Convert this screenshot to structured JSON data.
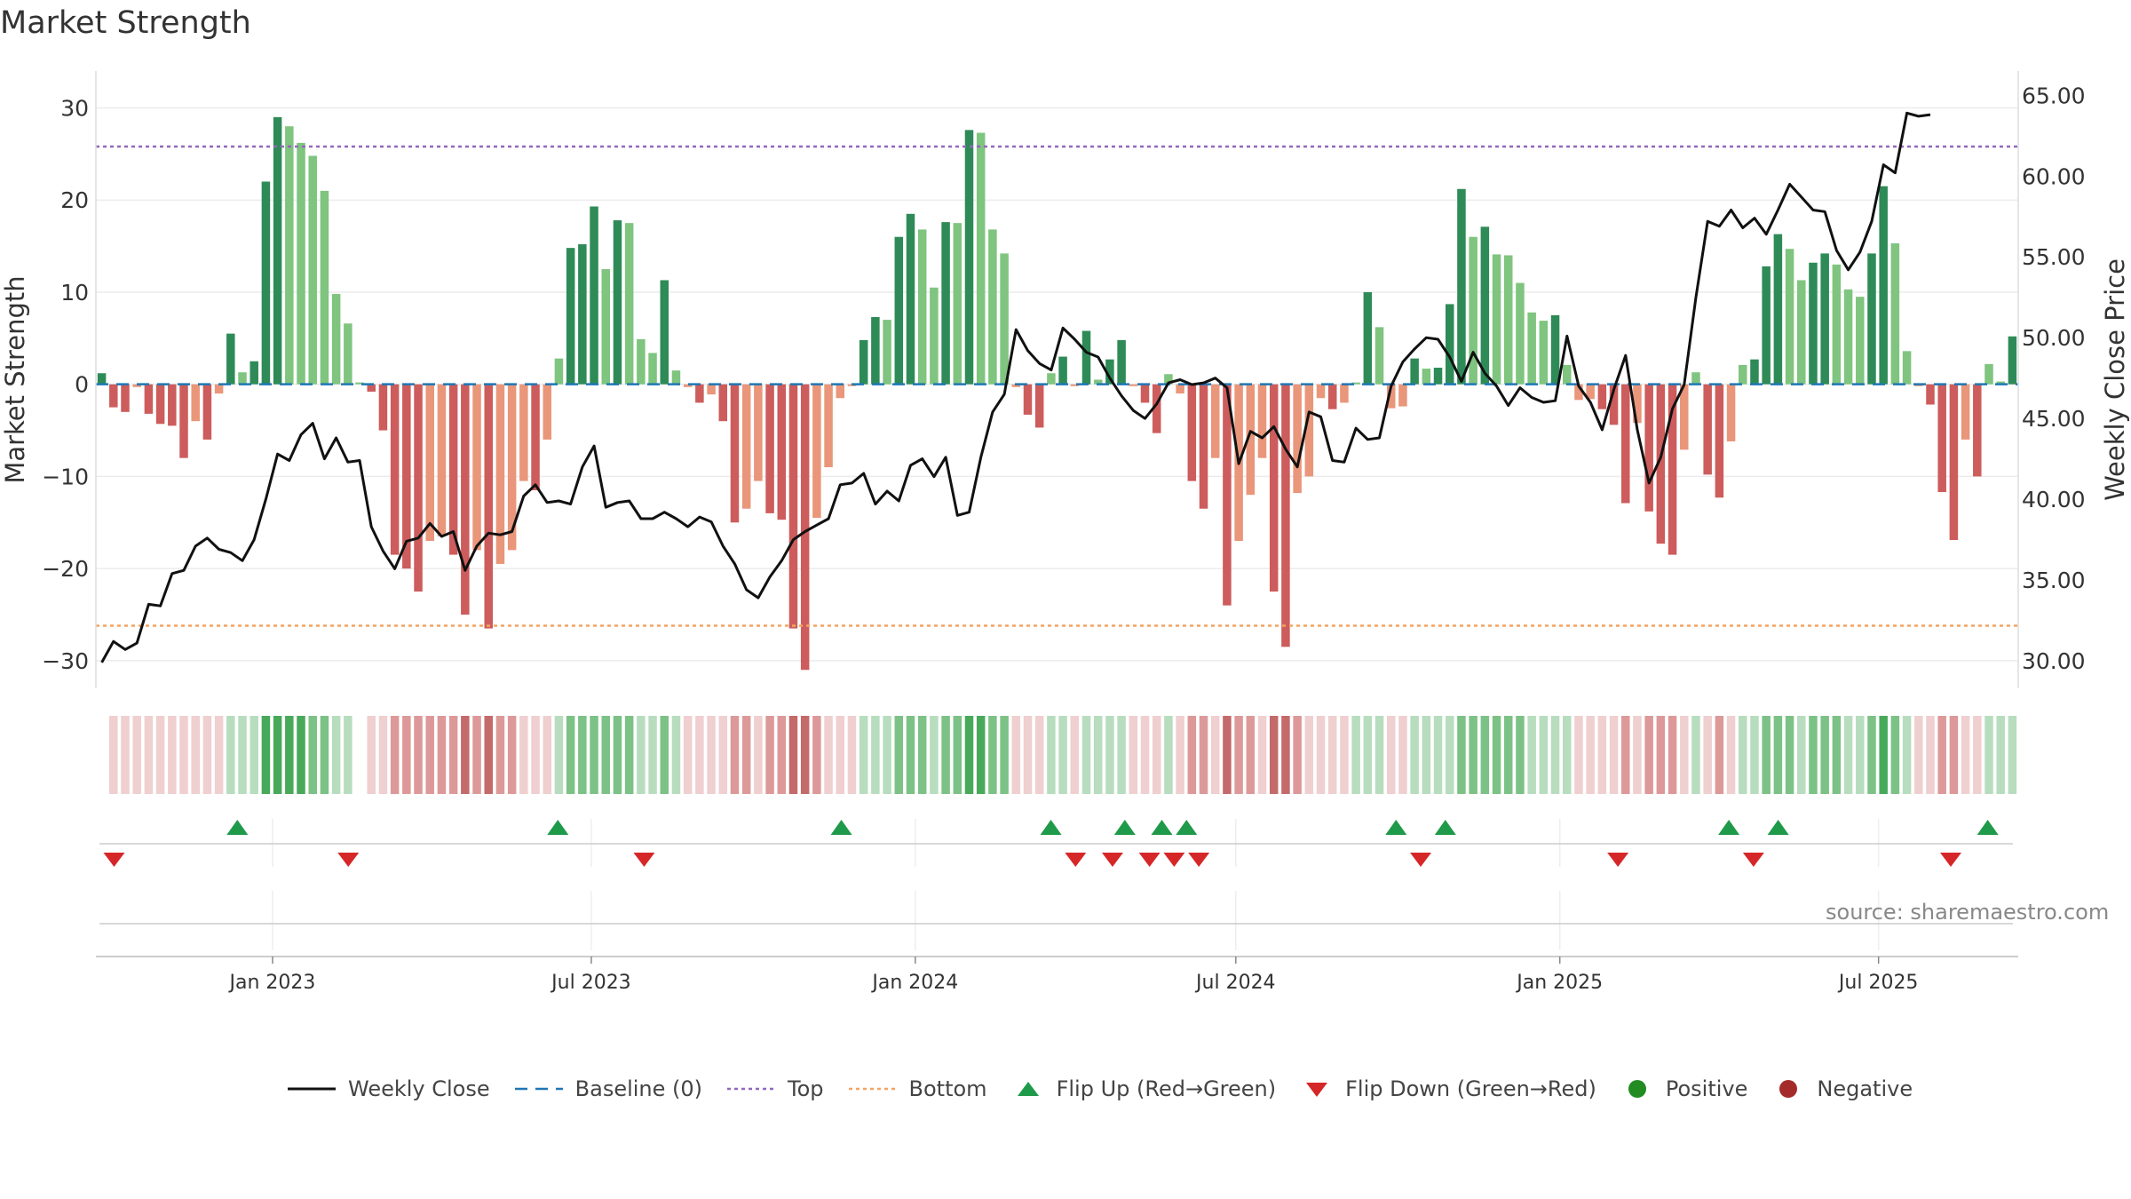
{
  "title": "Market Strength",
  "source": "source: sharemaestro.com",
  "colors": {
    "pos_strong": "#2e8b57",
    "pos_light": "#7fc47f",
    "neg_strong": "#cd5c5c",
    "neg_light": "#e9967a",
    "line": "#111111",
    "baseline": "#1f77b4",
    "top": "#9467bd",
    "bottom": "#f4a460",
    "flip_up": "#1f9a4a",
    "flip_down": "#d62728",
    "legend_positive": "#228b22",
    "legend_negative": "#a52a2a"
  },
  "legend": {
    "weekly_close": "Weekly Close",
    "baseline": "Baseline (0)",
    "top": "Top",
    "bottom": "Bottom",
    "flip_up": "Flip Up (Red→Green)",
    "flip_down": "Flip Down (Green→Red)",
    "positive": "Positive",
    "negative": "Negative"
  },
  "chart_data": {
    "type": "bar",
    "title": "Market Strength",
    "ylabel": "Market Strength",
    "y2label": "Weekly Close Price",
    "ylim": [
      -33,
      34
    ],
    "y2lim": [
      28.3,
      66.5
    ],
    "yticks": [
      30,
      20,
      10,
      0,
      -10,
      -20,
      -30
    ],
    "ytick_labels": [
      "30",
      "20",
      "10",
      "0",
      "−10",
      "−20",
      "−30"
    ],
    "y2ticks": [
      65,
      60,
      55,
      50,
      45,
      40,
      35,
      30
    ],
    "y2tick_labels": [
      "65.00",
      "60.00",
      "55.00",
      "50.00",
      "45.00",
      "40.00",
      "35.00",
      "30.00"
    ],
    "top_line": 25.8,
    "bottom_line": -26.2,
    "x_date_range": [
      "2022-09-26",
      "2025-09-15"
    ],
    "xticks": [
      {
        "label": "Jan 2023",
        "date": "2023-01-01"
      },
      {
        "label": "Jul 2023",
        "date": "2023-07-01"
      },
      {
        "label": "Jan 2024",
        "date": "2024-01-01"
      },
      {
        "label": "Jul 2024",
        "date": "2024-07-01"
      },
      {
        "label": "Jan 2025",
        "date": "2025-01-01"
      },
      {
        "label": "Jul 2025",
        "date": "2025-07-01"
      }
    ],
    "strength": [
      1.2,
      -2.5,
      -3.0,
      -0.3,
      -3.2,
      -4.3,
      -4.5,
      -8.0,
      -4.0,
      -6.0,
      -1.0,
      5.5,
      1.3,
      2.5,
      22.0,
      29.0,
      28.0,
      26.2,
      24.8,
      21.0,
      9.8,
      6.6,
      0.2,
      -0.8,
      -5.0,
      -18.5,
      -20.0,
      -22.5,
      -17.0,
      -16.5,
      -18.5,
      -25.0,
      -18.0,
      -26.5,
      -19.5,
      -18.0,
      -10.5,
      -11.5,
      -6.0,
      2.8,
      14.8,
      15.2,
      19.3,
      12.5,
      17.8,
      17.5,
      4.9,
      3.4,
      11.3,
      1.5,
      -0.3,
      -2.0,
      -1.1,
      -4.0,
      -15.0,
      -13.5,
      -10.5,
      -14.0,
      -14.7,
      -26.5,
      -31.0,
      -14.5,
      -9.0,
      -1.5,
      -0.2,
      4.8,
      7.3,
      7.0,
      16.0,
      18.5,
      16.8,
      10.5,
      17.6,
      17.5,
      27.6,
      27.3,
      16.8,
      14.2,
      -0.3,
      -3.3,
      -4.7,
      1.2,
      3.0,
      -0.2,
      5.8,
      0.5,
      2.7,
      4.8,
      -0.2,
      -2.0,
      -5.3,
      1.1,
      -1.0,
      -10.5,
      -13.5,
      -8.0,
      -24.0,
      -17.0,
      -12.0,
      -8.0,
      -22.5,
      -28.5,
      -11.8,
      -10.0,
      -1.5,
      -2.7,
      -2.0,
      0.2,
      10.0,
      6.2,
      -2.6,
      -2.4,
      2.8,
      1.7,
      1.8,
      8.7,
      21.2,
      16.0,
      17.1,
      14.1,
      14.0,
      11.0,
      7.8,
      6.9,
      7.5,
      2.1,
      -1.7,
      -1.6,
      -2.7,
      -4.4,
      -12.9,
      -4.2,
      -13.8,
      -17.3,
      -18.5,
      -7.1,
      1.3,
      -9.8,
      -12.3,
      -6.2,
      2.1,
      2.7,
      12.8,
      16.3,
      14.7,
      11.3,
      13.2,
      14.2,
      13.0,
      10.3,
      9.5,
      14.2,
      21.5,
      15.3,
      3.6,
      -0.2,
      -2.2,
      -11.7,
      -16.9,
      -6.0,
      -10.0,
      2.2,
      0.3,
      5.2
    ],
    "weekly_close": [
      29.9,
      31.2,
      30.7,
      31.1,
      33.5,
      33.4,
      35.4,
      35.6,
      37.1,
      37.6,
      36.9,
      36.7,
      36.2,
      37.5,
      40.0,
      42.8,
      42.4,
      44.0,
      44.7,
      42.5,
      43.8,
      42.3,
      42.4,
      38.3,
      36.8,
      35.7,
      37.4,
      37.6,
      38.5,
      37.7,
      38.0,
      35.6,
      37.1,
      37.9,
      37.8,
      38.0,
      40.2,
      40.9,
      39.8,
      39.9,
      39.7,
      42.0,
      43.3,
      39.5,
      39.8,
      39.9,
      38.8,
      38.8,
      39.2,
      38.8,
      38.3,
      38.9,
      38.6,
      37.1,
      36.0,
      34.4,
      33.9,
      35.2,
      36.2,
      37.5,
      38.0,
      38.4,
      38.8,
      40.9,
      41.0,
      41.6,
      39.7,
      40.5,
      39.9,
      42.1,
      42.5,
      41.4,
      42.6,
      39.0,
      39.2,
      42.6,
      45.4,
      46.5,
      50.5,
      49.2,
      48.4,
      48.0,
      50.6,
      49.9,
      49.1,
      48.8,
      47.5,
      46.4,
      45.5,
      45.0,
      45.9,
      47.2,
      47.4,
      47.1,
      47.2,
      47.5,
      46.9,
      42.2,
      44.2,
      43.8,
      44.5,
      43.1,
      42.0,
      45.4,
      45.1,
      42.4,
      42.3,
      44.4,
      43.7,
      43.8,
      47.0,
      48.5,
      49.3,
      50.0,
      49.9,
      48.8,
      47.3,
      49.1,
      47.8,
      47.0,
      45.8,
      46.9,
      46.3,
      46.0,
      46.1,
      50.1,
      47.0,
      46.0,
      44.3,
      46.8,
      48.9,
      44.3,
      41.0,
      42.6,
      45.6,
      47.1,
      52.5,
      57.2,
      56.9,
      57.9,
      56.8,
      57.4,
      56.4,
      57.9,
      59.5,
      58.7,
      57.9,
      57.8,
      55.4,
      54.2,
      55.3,
      57.2,
      60.7,
      60.2,
      63.9,
      63.7,
      63.8
    ],
    "heat_marks": [
      0,
      -1,
      -1,
      -1,
      -1,
      -1,
      -1,
      -1,
      -1,
      -1,
      -1,
      1,
      1,
      1,
      3,
      3,
      3,
      3,
      2,
      2,
      1,
      1,
      0,
      -1,
      -1,
      -2,
      -2,
      -2,
      -2,
      -2,
      -2,
      -3,
      -2,
      -3,
      -2,
      -2,
      -1,
      -1,
      -1,
      1,
      2,
      2,
      2,
      2,
      2,
      2,
      1,
      1,
      2,
      1,
      -1,
      -1,
      -1,
      -1,
      -2,
      -2,
      -1,
      -2,
      -2,
      -3,
      -3,
      -2,
      -1,
      -1,
      -1,
      1,
      1,
      1,
      2,
      2,
      2,
      1,
      2,
      2,
      3,
      3,
      2,
      2,
      -1,
      -1,
      -1,
      1,
      1,
      -1,
      1,
      1,
      1,
      1,
      -1,
      -1,
      -1,
      1,
      -1,
      -2,
      -2,
      -1,
      -3,
      -2,
      -2,
      -1,
      -3,
      -3,
      -2,
      -1,
      -1,
      -1,
      -1,
      1,
      1,
      1,
      -1,
      -1,
      1,
      1,
      1,
      1,
      2,
      2,
      2,
      2,
      2,
      2,
      1,
      1,
      1,
      1,
      -1,
      -1,
      -1,
      -1,
      -2,
      -1,
      -2,
      -2,
      -2,
      -1,
      1,
      -1,
      -2,
      -1,
      1,
      1,
      2,
      2,
      2,
      1,
      2,
      2,
      2,
      1,
      1,
      2,
      3,
      2,
      1,
      -1,
      -1,
      -2,
      -2,
      -1,
      -1,
      1,
      1,
      1
    ],
    "flip_up": [
      "2022-12-12",
      "2023-06-12",
      "2023-11-20",
      "2024-03-18",
      "2024-04-29",
      "2024-05-20",
      "2024-06-03",
      "2024-09-30",
      "2024-10-28",
      "2025-04-07",
      "2025-05-05",
      "2025-09-01"
    ],
    "flip_down": [
      "2022-10-03",
      "2023-02-13",
      "2023-07-31",
      "2024-04-01",
      "2024-04-22",
      "2024-05-13",
      "2024-05-27",
      "2024-06-10",
      "2024-10-14",
      "2025-02-03",
      "2025-04-21",
      "2025-08-11"
    ]
  }
}
